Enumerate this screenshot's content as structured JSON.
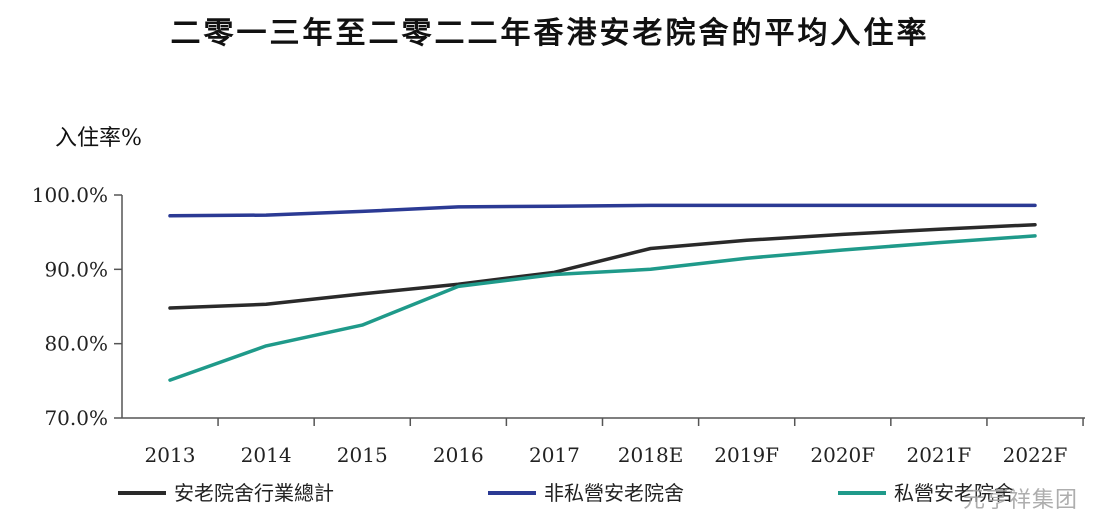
{
  "watermark": "元亨祥集团",
  "chart_data": {
    "type": "line",
    "title": "二零一三年至二零二二年香港安老院舍的平均入住率",
    "ylabel": "入住率%",
    "xlabel": "",
    "categories": [
      "2013",
      "2014",
      "2015",
      "2016",
      "2017",
      "2018E",
      "2019F",
      "2020F",
      "2021F",
      "2022F"
    ],
    "ylim": [
      70,
      100
    ],
    "yticks": [
      70,
      80,
      90,
      100
    ],
    "ytick_labels": [
      "70.0%",
      "80.0%",
      "90.0%",
      "100.0%"
    ],
    "grid": false,
    "legend_position": "bottom",
    "series": [
      {
        "name": "安老院舍行業總計",
        "color": "#2a2a2a",
        "values": [
          84.8,
          85.3,
          86.7,
          88.0,
          89.6,
          92.8,
          93.9,
          94.7,
          95.4,
          96.0
        ]
      },
      {
        "name": "非私營安老院舍",
        "color": "#2b3a94",
        "values": [
          97.2,
          97.3,
          97.8,
          98.4,
          98.5,
          98.6,
          98.6,
          98.6,
          98.6,
          98.6
        ]
      },
      {
        "name": "私營安老院舍",
        "color": "#1f9a8a",
        "values": [
          75.1,
          79.7,
          82.5,
          87.7,
          89.3,
          90.0,
          91.5,
          92.6,
          93.6,
          94.5
        ]
      }
    ]
  }
}
